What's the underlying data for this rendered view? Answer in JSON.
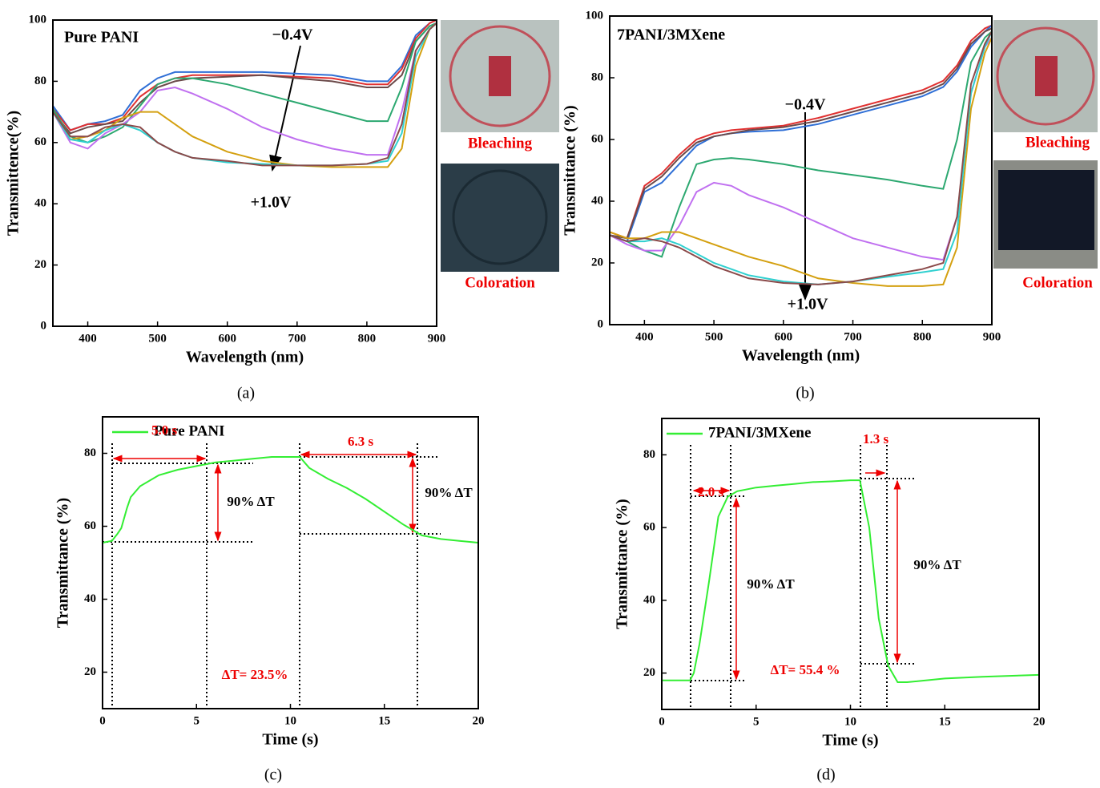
{
  "chart_data": [
    {
      "type": "line",
      "panel_label": "(a)",
      "x_label": "Wavelength (nm)",
      "y_label": "Transmittence(%)",
      "xlim": [
        350,
        900
      ],
      "ylim": [
        0,
        100
      ],
      "xticks": [
        400,
        500,
        600,
        700,
        800,
        900
      ],
      "yticks": [
        0,
        20,
        40,
        60,
        80,
        100
      ],
      "annotations": [
        "Pure PANI",
        "−0.4V",
        "+1.0V"
      ],
      "photo_labels": [
        "Bleaching",
        "Coloration"
      ],
      "x": [
        350,
        375,
        400,
        425,
        450,
        475,
        500,
        525,
        550,
        600,
        650,
        700,
        750,
        800,
        830,
        850,
        870,
        890,
        900
      ],
      "series": [
        {
          "color": "#2f6fd6",
          "values": [
            72,
            64,
            66,
            67,
            69,
            77,
            81,
            83,
            83,
            83,
            83,
            82.5,
            82,
            80,
            80,
            85,
            95,
            99,
            100
          ]
        },
        {
          "color": "#e03030",
          "values": [
            71,
            64,
            66,
            66,
            68,
            75,
            79,
            81,
            82,
            82,
            82,
            81.5,
            81,
            79,
            79,
            84,
            94,
            99,
            100
          ]
        },
        {
          "color": "#6b4a4a",
          "values": [
            70,
            63,
            65,
            66,
            67,
            73,
            78,
            80,
            81,
            81.5,
            82,
            81,
            80,
            78,
            78,
            82,
            93,
            98,
            99
          ]
        },
        {
          "color": "#2ca870",
          "values": [
            71,
            62,
            60,
            62,
            65,
            72,
            79,
            81,
            81,
            79,
            76,
            73,
            70,
            67,
            67,
            78,
            93,
            98,
            99
          ]
        },
        {
          "color": "#c070f0",
          "values": [
            70,
            60,
            58,
            63,
            66,
            70,
            77,
            78,
            76,
            71,
            65,
            61,
            58,
            56,
            56,
            70,
            90,
            97,
            99
          ]
        },
        {
          "color": "#d4a010",
          "values": [
            70,
            61,
            62,
            64,
            68,
            70,
            70,
            66,
            62,
            57,
            54,
            52.5,
            52,
            52,
            52,
            58,
            85,
            97,
            99
          ]
        },
        {
          "color": "#30d0d0",
          "values": [
            70,
            61,
            60,
            64,
            66,
            64,
            60,
            57,
            55,
            53.5,
            53,
            52.5,
            52.5,
            53,
            54,
            63,
            88,
            97,
            99
          ]
        },
        {
          "color": "#8b4a4a",
          "values": [
            70,
            62,
            62,
            65,
            66,
            65,
            60,
            57,
            55,
            54,
            52.5,
            52.5,
            52.5,
            53,
            55,
            66,
            90,
            97,
            99
          ]
        }
      ]
    },
    {
      "type": "line",
      "panel_label": "(b)",
      "x_label": "Wavelength (nm)",
      "y_label": "Transmittance (%)",
      "xlim": [
        350,
        900
      ],
      "ylim": [
        0,
        100
      ],
      "xticks": [
        400,
        500,
        600,
        700,
        800,
        900
      ],
      "yticks": [
        0,
        20,
        40,
        60,
        80,
        100
      ],
      "annotations": [
        "7PANI/3MXene",
        "−0.4V",
        "+1.0V"
      ],
      "photo_labels": [
        "Bleaching",
        "Coloration"
      ],
      "x": [
        350,
        375,
        400,
        425,
        450,
        475,
        500,
        525,
        550,
        600,
        650,
        700,
        750,
        800,
        830,
        850,
        870,
        890,
        900
      ],
      "series": [
        {
          "color": "#e03030",
          "values": [
            30,
            28,
            45,
            49,
            55,
            60,
            62,
            63,
            63.5,
            64.5,
            67,
            70,
            73,
            76,
            79,
            84,
            92,
            96,
            97
          ]
        },
        {
          "color": "#2f6fd6",
          "values": [
            29,
            27,
            43,
            46,
            52,
            58,
            61,
            62,
            62.5,
            63,
            65,
            68,
            71,
            74,
            77,
            82,
            90,
            95,
            97
          ]
        },
        {
          "color": "#6b4a4a",
          "values": [
            29,
            28,
            44,
            48,
            54,
            59,
            61,
            62,
            63,
            64,
            66,
            69,
            72,
            75,
            78,
            83,
            91,
            95,
            96
          ]
        },
        {
          "color": "#2ca870",
          "values": [
            29,
            27,
            24,
            22,
            38,
            52,
            53.5,
            54,
            53.5,
            52,
            50,
            48.5,
            47,
            45,
            44,
            60,
            85,
            93,
            95
          ]
        },
        {
          "color": "#c070f0",
          "values": [
            29,
            26,
            24,
            24,
            32,
            43,
            46,
            45,
            42,
            38,
            33,
            28,
            25,
            22,
            21,
            35,
            75,
            90,
            93
          ]
        },
        {
          "color": "#d4a010",
          "values": [
            30,
            28,
            28,
            30,
            30,
            28,
            26,
            24,
            22,
            19,
            15,
            13.5,
            12.5,
            12.5,
            13,
            25,
            70,
            88,
            93
          ]
        },
        {
          "color": "#30d0d0",
          "values": [
            29,
            27,
            27,
            28,
            26,
            23,
            20,
            18,
            16,
            14,
            13,
            14,
            15.5,
            17,
            18,
            30,
            75,
            90,
            95
          ]
        },
        {
          "color": "#8b4a4a",
          "values": [
            29,
            27,
            28,
            27,
            25,
            22,
            19,
            17,
            15,
            13.5,
            13,
            14,
            16,
            18,
            20,
            35,
            78,
            91,
            95
          ]
        }
      ]
    },
    {
      "type": "line",
      "panel_label": "(c)",
      "x_label": "Time (s)",
      "y_label": "Transmittance (%)",
      "xlim": [
        0,
        20
      ],
      "ylim": [
        10,
        90
      ],
      "xticks": [
        0,
        5,
        10,
        15,
        20
      ],
      "yticks": [
        20,
        40,
        60,
        80
      ],
      "annotations": [
        "5.0 s",
        "6.3 s",
        "90% ΔT",
        "90% ΔT",
        "ΔT= 23.5%"
      ],
      "x": [
        0,
        0.5,
        0.8,
        1,
        1.3,
        1.5,
        2,
        3,
        4,
        5,
        6,
        7,
        8,
        9,
        10,
        10.5,
        11,
        12,
        13,
        14,
        15,
        16,
        16.5,
        17,
        18,
        19,
        20
      ],
      "series": [
        {
          "name": "Pure PANI",
          "color": "#33ee33",
          "values": [
            55.5,
            56,
            58,
            59.5,
            65,
            68,
            71,
            74,
            75.5,
            76.5,
            77.5,
            78,
            78.5,
            79,
            79,
            79,
            76,
            73,
            70.5,
            67.5,
            64,
            60.5,
            59,
            57.5,
            56.5,
            56,
            55.5
          ]
        }
      ]
    },
    {
      "type": "line",
      "panel_label": "(d)",
      "x_label": "Time (s)",
      "y_label": "Transmittance (%)",
      "xlim": [
        0,
        20
      ],
      "ylim": [
        10,
        90
      ],
      "xticks": [
        0,
        5,
        10,
        15,
        20
      ],
      "yticks": [
        20,
        40,
        60,
        80
      ],
      "annotations": [
        "2.0 s",
        "1.3 s",
        "90% ΔT",
        "90% ΔT",
        "ΔT= 55.4 %"
      ],
      "x": [
        0,
        1.5,
        1.7,
        2,
        2.5,
        3,
        3.5,
        4,
        5,
        6,
        7,
        8,
        9,
        10,
        10.5,
        11,
        11.5,
        12,
        12.5,
        13,
        15,
        17,
        20
      ],
      "series": [
        {
          "name": "7PANI/3MXene",
          "color": "#33ee33",
          "values": [
            18,
            18,
            20,
            28,
            45,
            63,
            68.5,
            70,
            71,
            71.5,
            72,
            72.5,
            72.7,
            73,
            73,
            60,
            35,
            22,
            17.5,
            17.5,
            18.5,
            19,
            19.5
          ]
        }
      ]
    }
  ]
}
